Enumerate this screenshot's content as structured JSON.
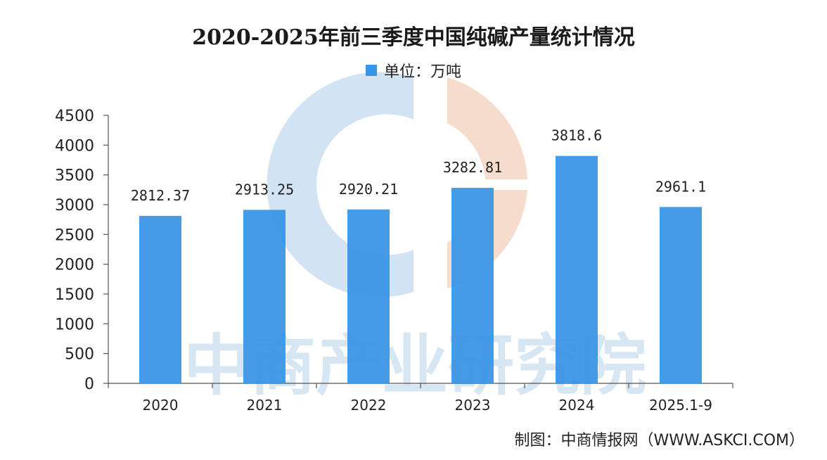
{
  "title": "2020-2025年前三季度中国纯碱产量统计情况",
  "legend": {
    "label": "单位：万吨"
  },
  "source": "制图：中商情报网（WWW.ASKCI.COM）",
  "watermark": "中商产业研究院",
  "colors": {
    "bar": "#3a96e6",
    "axis": "#555555",
    "watermark_blue": "#d2e4f4",
    "watermark_orange": "#f6dccd"
  },
  "chart_data": {
    "type": "bar",
    "title": "2020-2025年前三季度中国纯碱产量统计情况",
    "categories": [
      "2020",
      "2021",
      "2022",
      "2023",
      "2024",
      "2025.1-9"
    ],
    "series": [
      {
        "name": "单位：万吨",
        "values": [
          2812.37,
          2913.25,
          2920.21,
          3282.81,
          3818.6,
          2961.1
        ]
      }
    ],
    "value_labels": [
      "2812.37",
      "2913.25",
      "2920.21",
      "3282.81",
      "3818.6",
      "2961.1"
    ],
    "ylim": [
      0,
      4500
    ],
    "yticks": [
      0,
      500,
      1000,
      1500,
      2000,
      2500,
      3000,
      3500,
      4000,
      4500
    ],
    "xlabel": "",
    "ylabel": "",
    "grid": false,
    "legend_position": "top-center"
  }
}
